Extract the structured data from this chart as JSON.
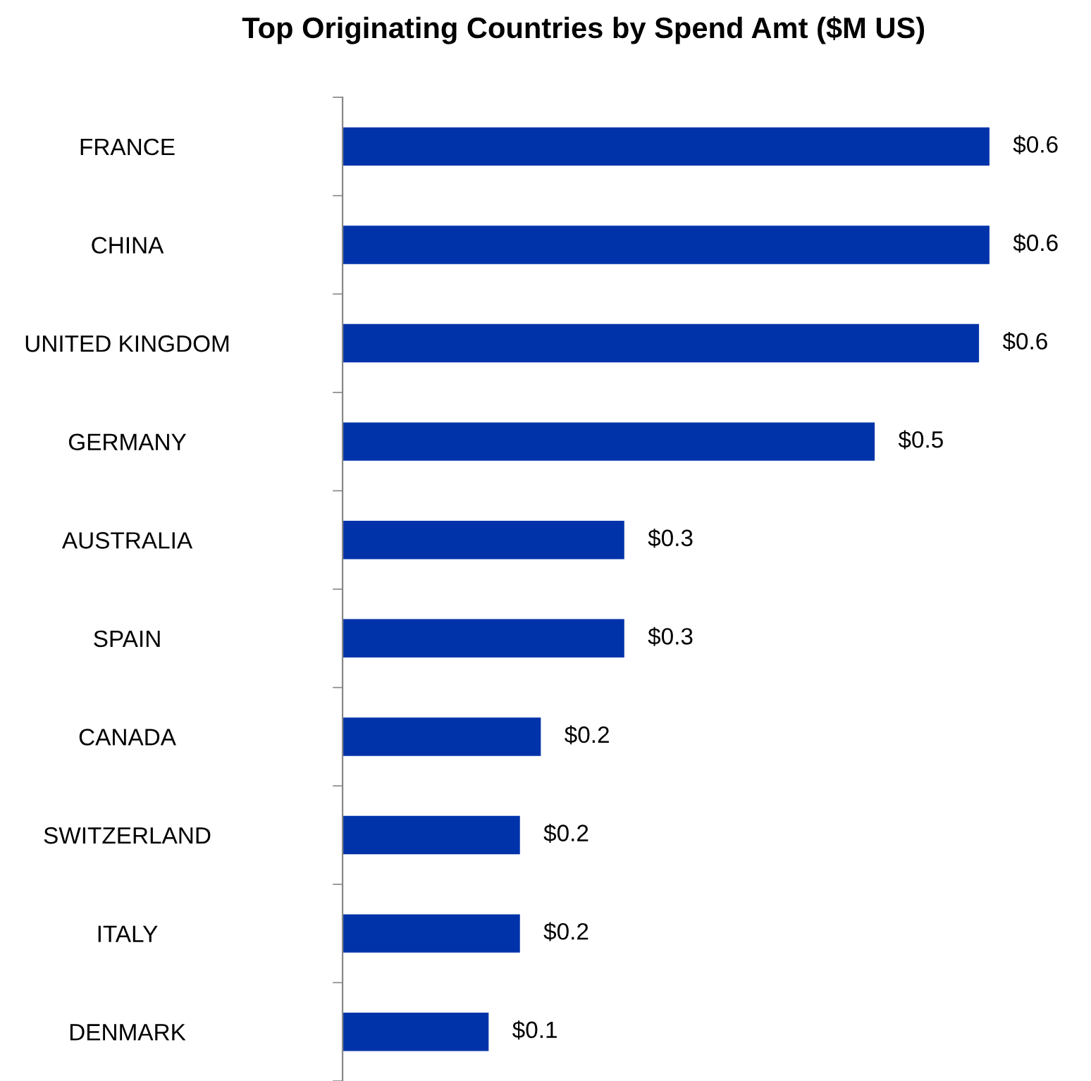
{
  "chart_data": {
    "type": "bar",
    "orientation": "horizontal",
    "title": "Top Originating Countries by Spend Amt ($M US)",
    "categories": [
      "FRANCE",
      "CHINA",
      "UNITED KINGDOM",
      "GERMANY",
      "AUSTRALIA",
      "SPAIN",
      "CANADA",
      "SWITZERLAND",
      "ITALY",
      "DENMARK"
    ],
    "values": [
      0.62,
      0.62,
      0.61,
      0.51,
      0.27,
      0.27,
      0.19,
      0.17,
      0.17,
      0.14
    ],
    "value_labels": [
      "$0.6",
      "$0.6",
      "$0.6",
      "$0.5",
      "$0.3",
      "$0.3",
      "$0.2",
      "$0.2",
      "$0.2",
      "$0.1"
    ],
    "color": "#0033aa",
    "tick_labels": "y"
  }
}
